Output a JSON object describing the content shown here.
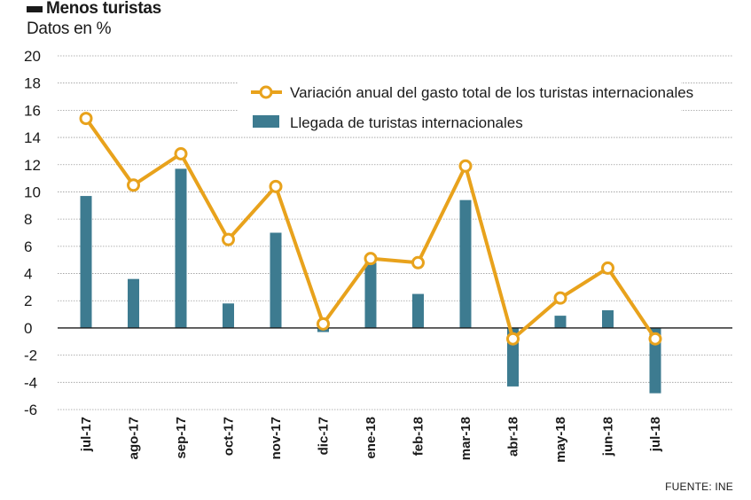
{
  "header": {
    "title": "Menos turistas",
    "subtitle": "Datos en %"
  },
  "footer": {
    "source": "FUENTE: INE"
  },
  "colors": {
    "line": "#e8a21c",
    "bar": "#3d7b90",
    "grid": "#9a9a9a",
    "axis": "#1a1a1a"
  },
  "chart_data": {
    "type": "bar",
    "categories": [
      "jul-17",
      "ago-17",
      "sep-17",
      "oct-17",
      "nov-17",
      "dic-17",
      "ene-18",
      "feb-18",
      "mar-18",
      "abr-18",
      "may-18",
      "jun-18",
      "jul-18"
    ],
    "ylim": [
      -6,
      20
    ],
    "yticks": [
      20,
      18,
      16,
      14,
      12,
      10,
      8,
      6,
      4,
      2,
      0,
      -2,
      -4,
      -6
    ],
    "grid": true,
    "legend_position": "top-right",
    "series": [
      {
        "name": "Variación anual del gasto total de los turistas internacionales",
        "type": "line",
        "values": [
          15.4,
          10.5,
          12.8,
          6.5,
          10.4,
          0.3,
          5.1,
          4.8,
          11.9,
          -0.8,
          2.2,
          4.4,
          -0.8
        ]
      },
      {
        "name": "Llegada de turistas internacionales",
        "type": "bar",
        "values": [
          9.7,
          3.6,
          11.7,
          1.8,
          7.0,
          -0.3,
          4.8,
          2.5,
          9.4,
          -4.3,
          0.9,
          1.3,
          -4.8
        ]
      }
    ]
  }
}
